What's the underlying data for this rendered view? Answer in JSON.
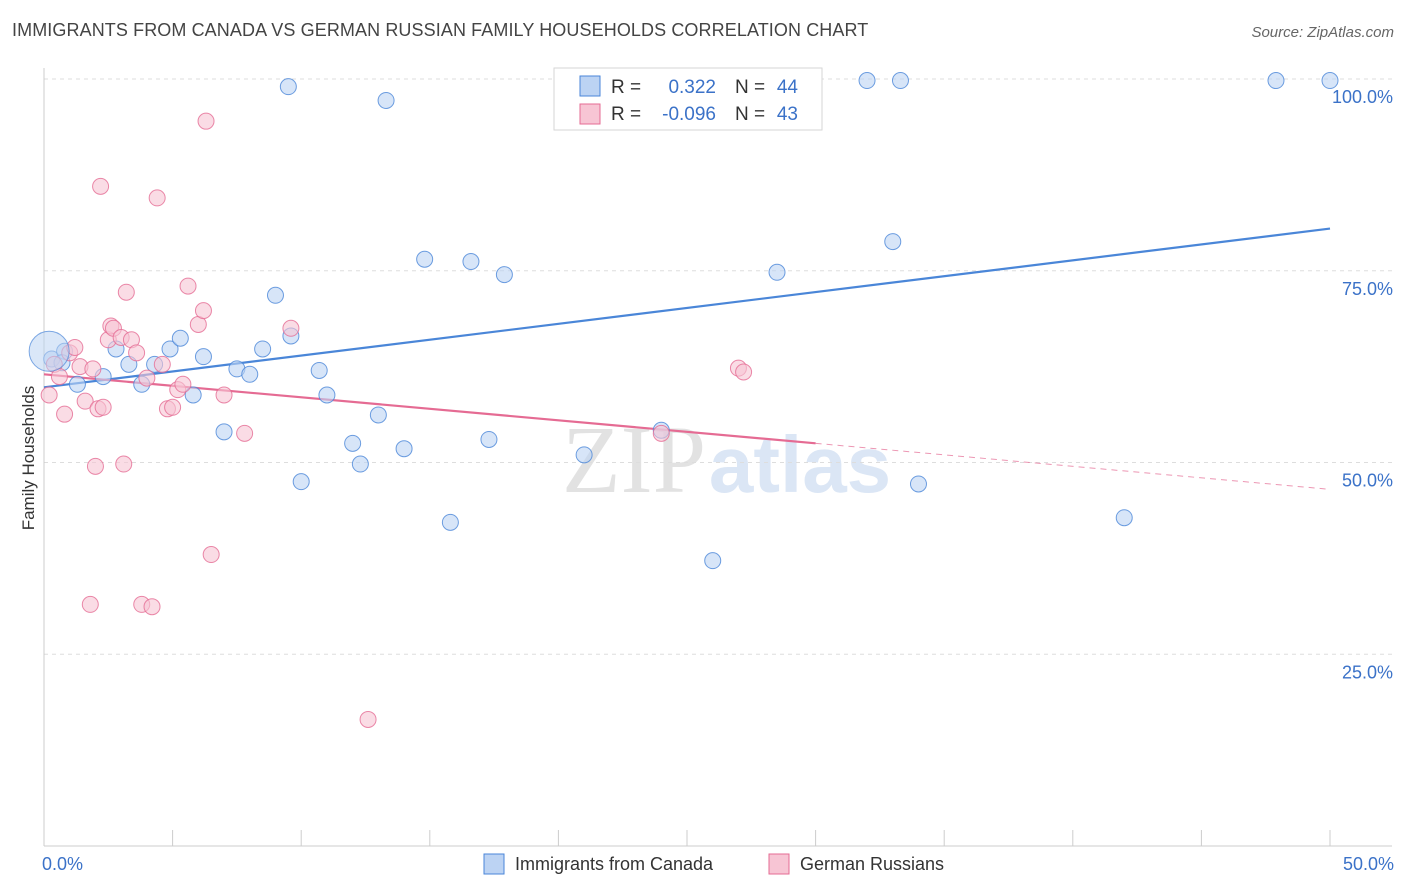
{
  "title": "IMMIGRANTS FROM CANADA VS GERMAN RUSSIAN FAMILY HOUSEHOLDS CORRELATION CHART",
  "source": "Source: ZipAtlas.com",
  "watermark": {
    "zip": "ZIP",
    "atlas": "atlas"
  },
  "colors": {
    "blue": "#4a86d8",
    "blue_fill": "#bcd3f3",
    "pink": "#e56b93",
    "pink_fill": "#f7c5d4",
    "axis_text": "#3b72c8"
  },
  "chart_data": {
    "type": "scatter",
    "title": "IMMIGRANTS FROM CANADA VS GERMAN RUSSIAN FAMILY HOUSEHOLDS CORRELATION CHART",
    "xlabel": "",
    "ylabel": "Family Households",
    "xlim": [
      0,
      50
    ],
    "ylim": [
      0,
      100
    ],
    "x_tick_labels": [
      "0.0%",
      "50.0%"
    ],
    "y_tick_values": [
      25,
      50,
      75,
      100
    ],
    "y_tick_labels": [
      "25.0%",
      "50.0%",
      "75.0%",
      "100.0%"
    ],
    "legend_stats": [
      {
        "r_label": "R =",
        "r": "0.322",
        "n_label": "N =",
        "n": "44"
      },
      {
        "r_label": "R =",
        "r": "-0.096",
        "n_label": "N =",
        "n": "43"
      }
    ],
    "series": [
      {
        "name": "Immigrants from Canada",
        "color": "blue",
        "trend": {
          "x0": 0,
          "y0": 59.8,
          "x1": 50,
          "y1": 80.5,
          "solid_until": 50
        },
        "points": [
          [
            0.3,
            63.5
          ],
          [
            0.8,
            64.5
          ],
          [
            0.7,
            63.0
          ],
          [
            1.3,
            60.2
          ],
          [
            2.3,
            61.2
          ],
          [
            2.8,
            64.8
          ],
          [
            3.3,
            62.8
          ],
          [
            3.8,
            60.2
          ],
          [
            4.3,
            62.8
          ],
          [
            4.9,
            64.8
          ],
          [
            5.3,
            66.2
          ],
          [
            5.8,
            58.8
          ],
          [
            6.2,
            63.8
          ],
          [
            7.0,
            54.0
          ],
          [
            7.5,
            62.2
          ],
          [
            8.0,
            61.5
          ],
          [
            8.5,
            64.8
          ],
          [
            9.0,
            71.8
          ],
          [
            9.5,
            99.0
          ],
          [
            9.6,
            66.5
          ],
          [
            10.0,
            47.5
          ],
          [
            10.7,
            62.0
          ],
          [
            11.0,
            58.8
          ],
          [
            12.0,
            52.5
          ],
          [
            12.3,
            49.8
          ],
          [
            13.0,
            56.2
          ],
          [
            13.3,
            97.2
          ],
          [
            14.0,
            51.8
          ],
          [
            14.8,
            76.5
          ],
          [
            15.8,
            42.2
          ],
          [
            16.6,
            76.2
          ],
          [
            17.3,
            53.0
          ],
          [
            17.9,
            74.5
          ],
          [
            21.0,
            51.0
          ],
          [
            24.0,
            54.2
          ],
          [
            26.0,
            37.2
          ],
          [
            28.5,
            74.8
          ],
          [
            32.0,
            99.8
          ],
          [
            33.0,
            78.8
          ],
          [
            33.3,
            99.8
          ],
          [
            34.0,
            47.2
          ],
          [
            42.0,
            42.8
          ],
          [
            47.9,
            99.8
          ],
          [
            50.0,
            99.8
          ]
        ]
      },
      {
        "name": "German Russians",
        "color": "pink",
        "trend": {
          "x0": 0,
          "y0": 61.5,
          "x1": 50,
          "y1": 46.5,
          "solid_until": 30
        },
        "points": [
          [
            0.2,
            58.8
          ],
          [
            0.4,
            62.8
          ],
          [
            0.6,
            61.2
          ],
          [
            0.8,
            56.3
          ],
          [
            1.0,
            64.3
          ],
          [
            1.2,
            65.0
          ],
          [
            1.4,
            62.5
          ],
          [
            1.6,
            58.0
          ],
          [
            1.8,
            31.5
          ],
          [
            1.9,
            62.2
          ],
          [
            2.0,
            49.5
          ],
          [
            2.1,
            57.0
          ],
          [
            2.3,
            57.2
          ],
          [
            2.2,
            86.0
          ],
          [
            2.5,
            66.0
          ],
          [
            2.6,
            67.8
          ],
          [
            2.7,
            67.5
          ],
          [
            3.0,
            66.3
          ],
          [
            3.1,
            49.8
          ],
          [
            3.2,
            72.2
          ],
          [
            3.4,
            66.0
          ],
          [
            3.6,
            64.3
          ],
          [
            3.8,
            31.5
          ],
          [
            4.0,
            61.0
          ],
          [
            4.2,
            31.2
          ],
          [
            4.4,
            84.5
          ],
          [
            4.6,
            62.8
          ],
          [
            4.8,
            57.0
          ],
          [
            5.0,
            57.2
          ],
          [
            5.2,
            59.5
          ],
          [
            5.4,
            60.2
          ],
          [
            5.6,
            73.0
          ],
          [
            6.0,
            68.0
          ],
          [
            6.2,
            69.8
          ],
          [
            6.3,
            94.5
          ],
          [
            6.5,
            38.0
          ],
          [
            7.0,
            58.8
          ],
          [
            7.8,
            53.8
          ],
          [
            9.6,
            67.5
          ],
          [
            12.6,
            16.5
          ],
          [
            24.0,
            53.8
          ],
          [
            27.0,
            62.3
          ],
          [
            27.2,
            61.8
          ]
        ]
      }
    ]
  }
}
